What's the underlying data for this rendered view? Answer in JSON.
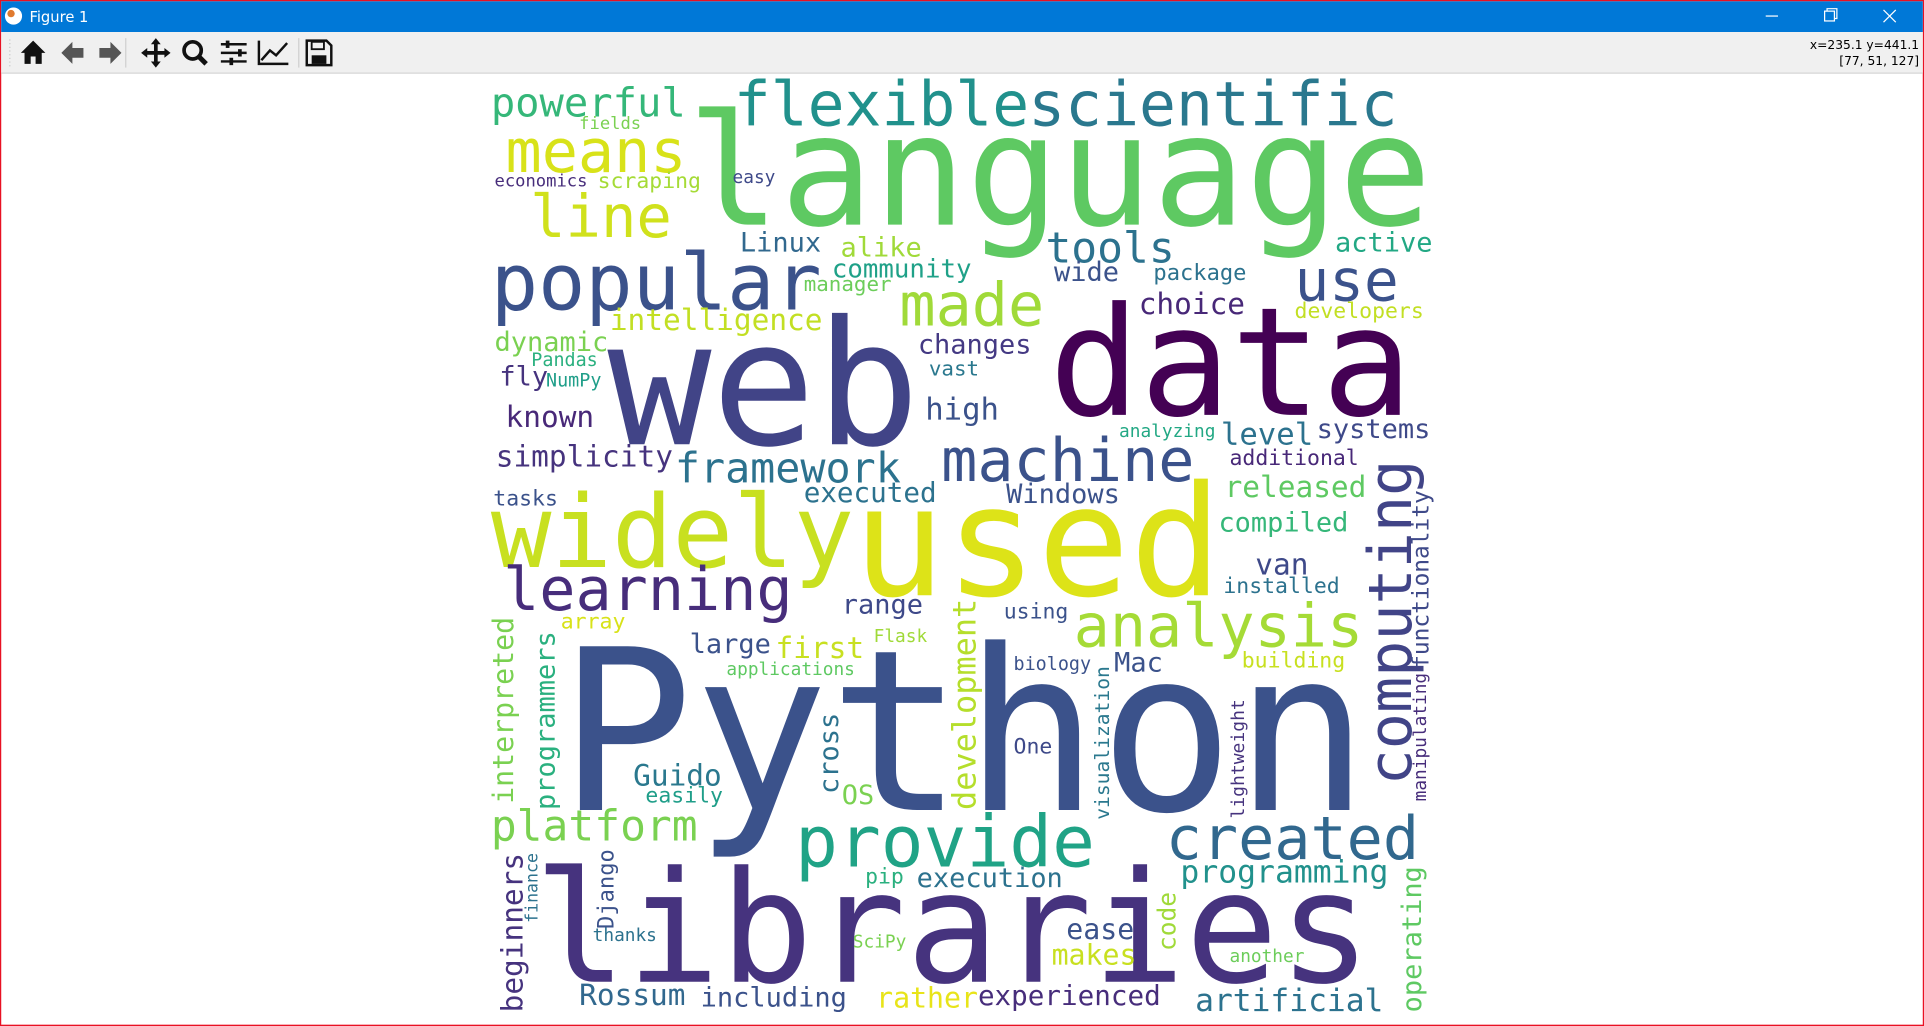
{
  "window": {
    "title": "Figure 1"
  },
  "status": {
    "coordinates": "x=235.1 y=441.1",
    "pixel": "[77, 51, 127]"
  },
  "wordcloud": {
    "words": [
      "language",
      "Python",
      "libraries",
      "web",
      "data",
      "used",
      "widely",
      "flexible",
      "scientific",
      "powerful",
      "means",
      "line",
      "popular",
      "made",
      "tools",
      "use",
      "active",
      "fields",
      "economics",
      "scraping",
      "easy",
      "Linux",
      "alike",
      "community",
      "manager",
      "wide",
      "package",
      "choice",
      "developers",
      "intelligence",
      "dynamic",
      "changes",
      "Pandas",
      "vast",
      "fly",
      "NumPy",
      "high",
      "known",
      "analyzing",
      "level",
      "systems",
      "machine",
      "simplicity",
      "framework",
      "additional",
      "computing",
      "functionality",
      "tasks",
      "executed",
      "Windows",
      "released",
      "compiled",
      "van",
      "installed",
      "learning",
      "range",
      "using",
      "analysis",
      "array",
      "large",
      "first",
      "Flask",
      "biology",
      "Mac",
      "building",
      "applications",
      "interpreted",
      "programmers",
      "development",
      "cross",
      "visualization",
      "lightweight",
      "manipulating",
      "Guido",
      "easily",
      "OS",
      "One",
      "platform",
      "provide",
      "created",
      "beginners",
      "finance",
      "Django",
      "pip",
      "execution",
      "programming",
      "operating",
      "code",
      "ease",
      "makes",
      "thanks",
      "SciPy",
      "another",
      "Rossum",
      "including",
      "rather",
      "experienced",
      "artificial"
    ]
  }
}
